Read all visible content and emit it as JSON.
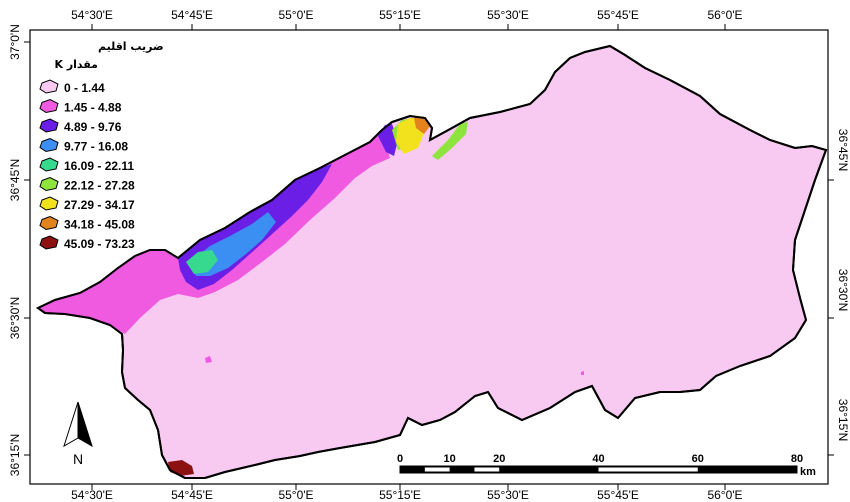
{
  "map": {
    "top_ticks": [
      "54°30'E",
      "54°45'E",
      "55°0'E",
      "55°15'E",
      "55°30'E",
      "55°45'E",
      "56°0'E"
    ],
    "bottom_ticks": [
      "54°30'E",
      "54°45'E",
      "55°0'E",
      "55°15'E",
      "55°30'E",
      "55°45'E",
      "56°0'E"
    ],
    "left_ticks": [
      "37°0'N",
      "36°45'N",
      "36°30'N",
      "36°15'N"
    ],
    "right_ticks": [
      "36°45'N",
      "36°30'N",
      "36°15'N"
    ]
  },
  "legend": {
    "title": "ضریب اقلیم",
    "subtitle": "K مقدار",
    "classes": [
      {
        "label": "0 - 1.44",
        "color": "#f8caf2"
      },
      {
        "label": "1.45 - 4.88",
        "color": "#f05ae0"
      },
      {
        "label": "4.89 - 9.76",
        "color": "#6a1ee6"
      },
      {
        "label": "9.77 - 16.08",
        "color": "#3c8ff2"
      },
      {
        "label": "16.09 - 22.11",
        "color": "#37d98f"
      },
      {
        "label": "22.12 - 27.28",
        "color": "#8ee33c"
      },
      {
        "label": "27.29 - 34.17",
        "color": "#f2e21e"
      },
      {
        "label": "34.18 - 45.08",
        "color": "#e2831b"
      },
      {
        "label": "45.09 - 73.23",
        "color": "#8c1212"
      }
    ]
  },
  "scale_bar": {
    "labels": [
      "0",
      "10",
      "20",
      "40",
      "60",
      "80"
    ],
    "unit": "km"
  },
  "north_arrow": {
    "label": "N"
  }
}
